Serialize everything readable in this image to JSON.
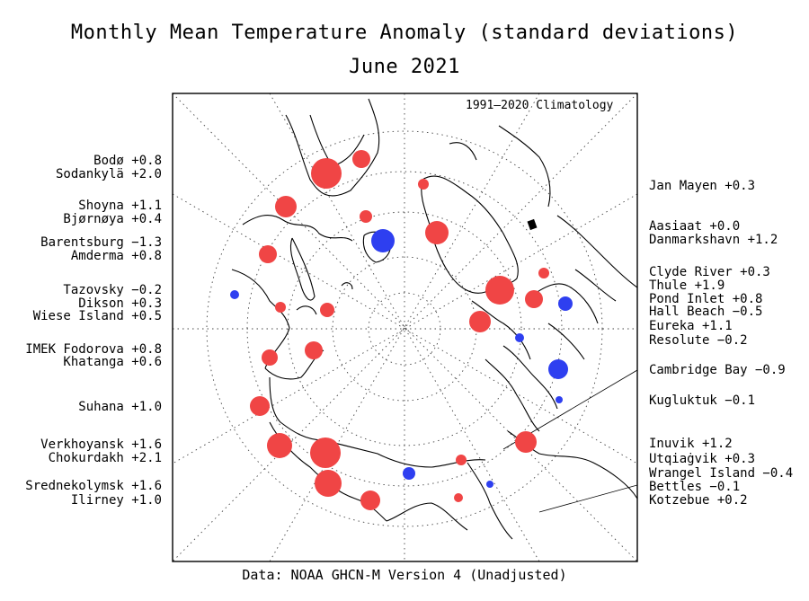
{
  "title": "Monthly Mean Temperature Anomaly (standard deviations)",
  "subtitle": "June 2021",
  "climatology": "1991–2020 Climatology",
  "footer": "Data: NOAA GHCN-M Version 4 (Unadjusted)",
  "colors": {
    "positive": "#f04545",
    "negative": "#2e3ff0"
  },
  "left_labels": [
    "Bodø +0.8",
    "Sodankylä +2.0",
    "Shoyna +1.1",
    "Bjørnøya +0.4",
    "Barentsburg −1.3",
    "Amderma +0.8",
    "Tazovsky −0.2",
    "Dikson +0.3",
    "Wiese Island +0.5",
    "IMEK Fodorova +0.8",
    "Khatanga +0.6",
    "Suhana +1.0",
    "Verkhoyansk +1.6",
    "Chokurdakh +2.1",
    "Srednekolymsk +1.6",
    "Ilirney +1.0"
  ],
  "right_labels": [
    "Jan Mayen +0.3",
    "Aasiaat +0.0",
    "Danmarkshavn +1.2",
    "Clyde River +0.3",
    "Thule +1.9",
    "Pond Inlet +0.8",
    "Hall Beach −0.5",
    "Eureka +1.1",
    "Resolute −0.2",
    "Cambridge Bay −0.9",
    "Kugluktuk −0.1",
    "Inuvik +1.2",
    "Utqiaġvik +0.3",
    "Wrangel Island −0.4",
    "Bettles −0.1",
    "Kotzebue +0.2"
  ]
}
